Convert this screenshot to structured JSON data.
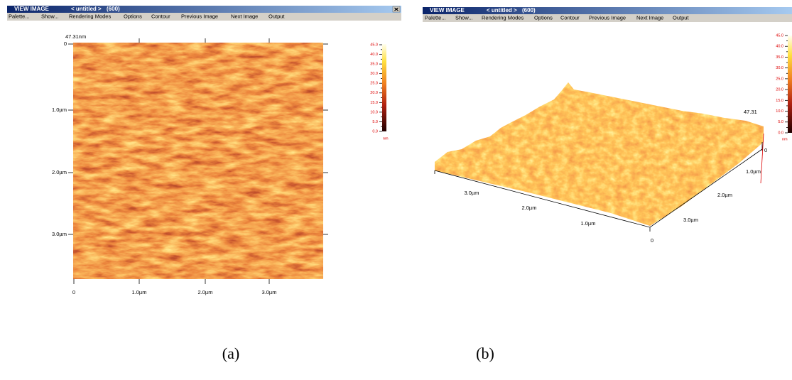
{
  "panels": [
    {
      "window_title": {
        "app": "VIEW IMAGE",
        "file": "< untitled >",
        "id": "(600)"
      },
      "menu": [
        "Palette...",
        "Show...",
        "Rendering Modes",
        "Options",
        "Contour",
        "Previous Image",
        "Next Image",
        "Output"
      ],
      "max_height_label": "47.31nm",
      "y_axis_labels": [
        "0",
        "1.0µm",
        "2.0µm",
        "3.0µm"
      ],
      "x_axis_labels": [
        "0",
        "1.0µm",
        "2.0µm",
        "3.0µm"
      ],
      "colorbar_labels": [
        "45.0",
        "40.0",
        "35.0",
        "30.0",
        "25.0",
        "20.0",
        "15.0",
        "10.0",
        "5.0",
        "0.0"
      ],
      "colorbar_unit": "nm",
      "caption": "(a)"
    },
    {
      "window_title": {
        "app": "VIEW IMAGE",
        "file": "< untitled >",
        "id": "(600)"
      },
      "menu": [
        "Palette...",
        "Show...",
        "Rendering Modes",
        "Options",
        "Contour",
        "Previous Image",
        "Next Image",
        "Output"
      ],
      "max_height_label": "47.31",
      "front_axis_labels": [
        "3.0µm",
        "2.0µm",
        "1.0µm",
        "0"
      ],
      "right_axis_labels": [
        "3.0µm",
        "2.0µm",
        "1.0µm",
        "0"
      ],
      "colorbar_labels": [
        "45.0",
        "40.0",
        "35.0",
        "30.0",
        "25.0",
        "20.0",
        "15.0",
        "10.0",
        "5.0",
        "0.0"
      ],
      "colorbar_unit": "nm",
      "caption": "(b)"
    }
  ]
}
